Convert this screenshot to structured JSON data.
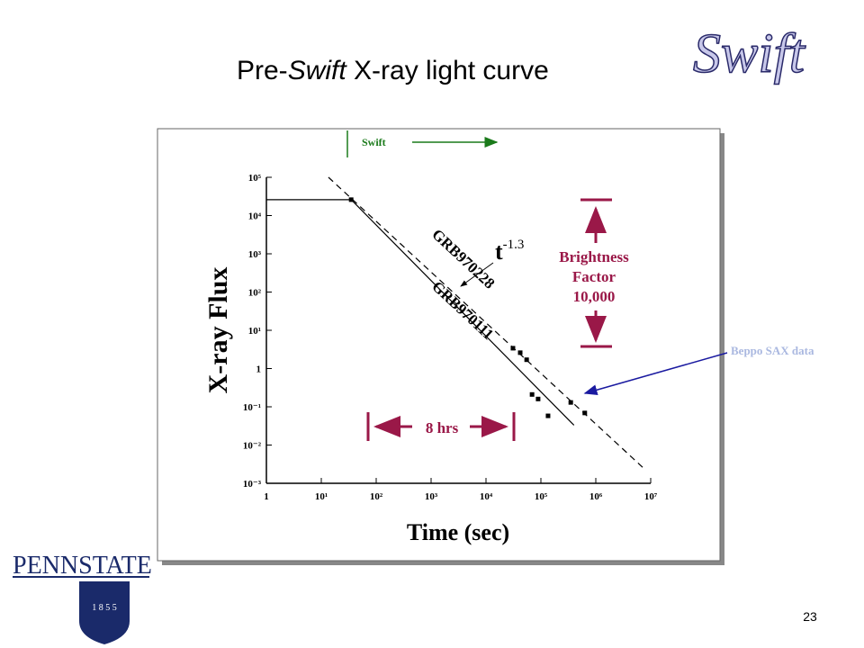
{
  "slide": {
    "title_parts": [
      "Pre-",
      "Swift",
      " X-ray light curve"
    ],
    "logo_text": "Swift",
    "university": "PENNSTATE",
    "founded": "1 8 5 5",
    "page_number": "23"
  },
  "chart_data": {
    "type": "line",
    "xlabel": "Time (sec)",
    "ylabel": "X-ray Flux",
    "xscale": "log",
    "yscale": "log",
    "xlim": [
      1,
      10000000
    ],
    "ylim": [
      0.001,
      100000
    ],
    "xticks": [
      1,
      {
        "value": 10,
        "label": "10¹"
      },
      {
        "value": 100,
        "label": "10²"
      },
      {
        "value": 1000,
        "label": "10³"
      },
      {
        "value": 10000,
        "label": "10⁴"
      },
      {
        "value": 100000,
        "label": "10⁵"
      },
      {
        "value": 1000000,
        "label": "10⁶"
      },
      {
        "value": 10000000,
        "label": "10⁷"
      }
    ],
    "yticks": [
      {
        "value": 0.001,
        "label": "10⁻³"
      },
      {
        "value": 0.01,
        "label": "10⁻²"
      },
      {
        "value": 0.1,
        "label": "10⁻¹"
      },
      1,
      {
        "value": 10,
        "label": "10¹"
      },
      {
        "value": 100,
        "label": "10²"
      },
      {
        "value": 1000,
        "label": "10³"
      },
      {
        "value": 10000,
        "label": "10⁴"
      },
      {
        "value": 100000,
        "label": "10⁵"
      }
    ],
    "series": [
      {
        "name": "GRB970228",
        "color": "#000000",
        "dashed": true,
        "x": [
          13.5,
          7400000
        ],
        "values": [
          100000,
          0.0025
        ]
      },
      {
        "name": "GRB970111",
        "color": "#000000",
        "dashed": false,
        "x": [
          1,
          35,
          400000
        ],
        "values": [
          26000,
          26000,
          0.033
        ]
      }
    ],
    "points": {
      "color": "#000000",
      "x": [
        35,
        31000,
        42000,
        55000,
        69000,
        89000,
        135000,
        350000,
        630000
      ],
      "values": [
        26000,
        3.4,
        2.6,
        1.7,
        0.21,
        0.16,
        0.058,
        0.13,
        0.069
      ]
    },
    "annotations": {
      "decay_base": "t",
      "decay_exponent": "-1.3",
      "brightness": [
        "Brightness",
        "Factor",
        "10,000"
      ],
      "duration": "8 hrs",
      "swift": "Swift",
      "beppo": "Beppo SAX data"
    }
  }
}
